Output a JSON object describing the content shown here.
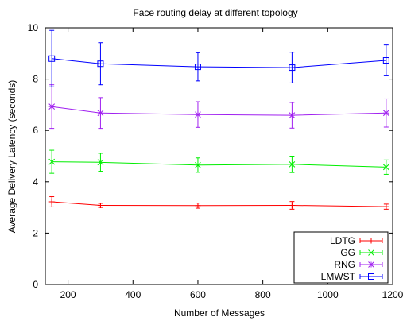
{
  "chart_data": {
    "type": "line",
    "title": "Face routing delay at different topology",
    "xlabel": "Number of Messages",
    "ylabel": "Average Delivery Latency (seconds)",
    "xlim": [
      130,
      1200
    ],
    "ylim": [
      0,
      10
    ],
    "xticks": [
      "200",
      "400",
      "600",
      "800",
      "1000",
      "1200"
    ],
    "yticks": [
      "0",
      "2",
      "4",
      "6",
      "8",
      "10"
    ],
    "grid": false,
    "legend_position": "bottom-right",
    "series": [
      {
        "name": "LDTG",
        "color": "#ff0000",
        "marker": "plus",
        "x": [
          150,
          300,
          600,
          890,
          1180
        ],
        "y": [
          3.22,
          3.08,
          3.07,
          3.08,
          3.03
        ],
        "err": [
          0.2,
          0.08,
          0.1,
          0.15,
          0.1
        ]
      },
      {
        "name": "GG",
        "color": "#00ee00",
        "marker": "x",
        "x": [
          150,
          300,
          600,
          890,
          1180
        ],
        "y": [
          4.78,
          4.76,
          4.65,
          4.68,
          4.57
        ],
        "err": [
          0.45,
          0.35,
          0.28,
          0.32,
          0.28
        ]
      },
      {
        "name": "RNG",
        "color": "#a020f0",
        "marker": "star",
        "x": [
          150,
          300,
          600,
          890,
          1180
        ],
        "y": [
          6.93,
          6.68,
          6.62,
          6.59,
          6.68
        ],
        "err": [
          0.85,
          0.6,
          0.5,
          0.5,
          0.55
        ]
      },
      {
        "name": "LMWST",
        "color": "#0000ff",
        "marker": "square",
        "x": [
          150,
          300,
          600,
          890,
          1180
        ],
        "y": [
          8.8,
          8.6,
          8.48,
          8.45,
          8.73
        ],
        "err": [
          1.1,
          0.82,
          0.55,
          0.6,
          0.6
        ]
      }
    ]
  }
}
